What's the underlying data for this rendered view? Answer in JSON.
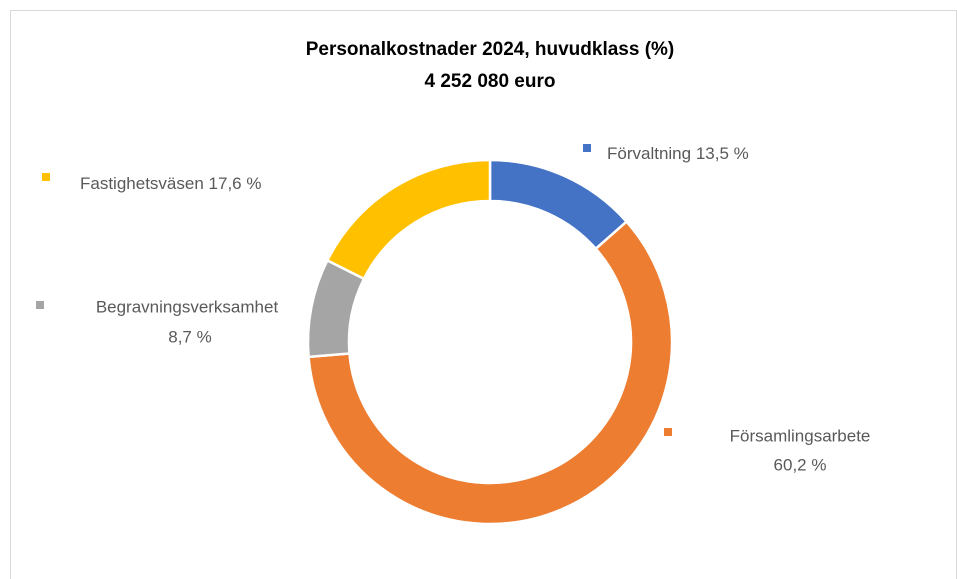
{
  "chart_data": {
    "type": "donut",
    "title": "Personalkostnader 2024, huvudklass (%)",
    "subtitle": "4 252 080 euro",
    "categories": [
      "Förvaltning",
      "Församlingsarbete",
      "Begravningsverksamhet",
      "Fastighetsväsen"
    ],
    "values": [
      13.5,
      60.2,
      8.7,
      17.6
    ],
    "value_labels": [
      "13,5 %",
      "60,2 %",
      "8,7 %",
      "17,6 %"
    ],
    "colors": [
      "#4472c4",
      "#ed7d31",
      "#a5a5a5",
      "#ffc000"
    ]
  }
}
